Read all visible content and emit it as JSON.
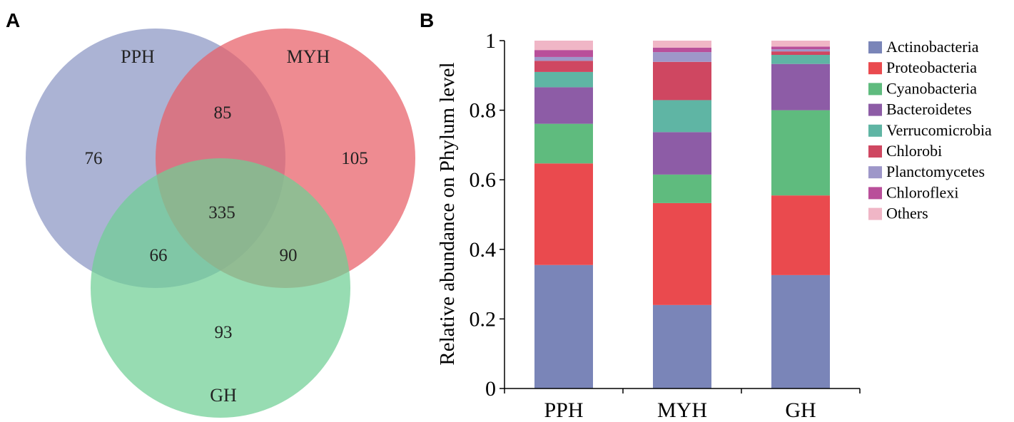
{
  "panels": {
    "venn_letter": "A",
    "bar_letter": "B"
  },
  "chart_data": [
    {
      "type": "venn",
      "sets": [
        {
          "name": "PPH",
          "color": "#8b96c4"
        },
        {
          "name": "MYH",
          "color": "#e75e66"
        },
        {
          "name": "GH",
          "color": "#6fcf94"
        }
      ],
      "regions": {
        "PPH_only": 76,
        "MYH_only": 105,
        "GH_only": 93,
        "PPH_MYH": 85,
        "PPH_GH": 66,
        "MYH_GH": 90,
        "all": 335
      }
    },
    {
      "type": "bar",
      "stacked": true,
      "categories": [
        "PPH",
        "MYH",
        "GH"
      ],
      "ylabel": "Relative abundance on Phylum level",
      "xlabel": "",
      "ylim": [
        0,
        1
      ],
      "yticks": [
        "0",
        "0.2",
        "0.4",
        "0.6",
        "0.8",
        "1"
      ],
      "series": [
        {
          "name": "Actinobacteria",
          "color": "#7a85b8",
          "values": [
            0.355,
            0.24,
            0.326
          ]
        },
        {
          "name": "Proteobacteria",
          "color": "#ea4a4e",
          "values": [
            0.292,
            0.293,
            0.229
          ]
        },
        {
          "name": "Cyanobacteria",
          "color": "#5fbb7e",
          "values": [
            0.114,
            0.082,
            0.245
          ]
        },
        {
          "name": "Bacteroidetes",
          "color": "#8d5ca6",
          "values": [
            0.105,
            0.122,
            0.133
          ]
        },
        {
          "name": "Verrucomicrobia",
          "color": "#5fb5a4",
          "values": [
            0.044,
            0.092,
            0.026
          ]
        },
        {
          "name": "Chlorobi",
          "color": "#cf4761",
          "values": [
            0.032,
            0.11,
            0.01
          ]
        },
        {
          "name": "Planctomycetes",
          "color": "#9e97c9",
          "values": [
            0.011,
            0.028,
            0.006
          ]
        },
        {
          "name": "Chloroflexi",
          "color": "#b94f9a",
          "values": [
            0.02,
            0.013,
            0.008
          ]
        },
        {
          "name": "Others",
          "color": "#f0b6c6",
          "values": [
            0.027,
            0.02,
            0.017
          ]
        }
      ]
    }
  ]
}
